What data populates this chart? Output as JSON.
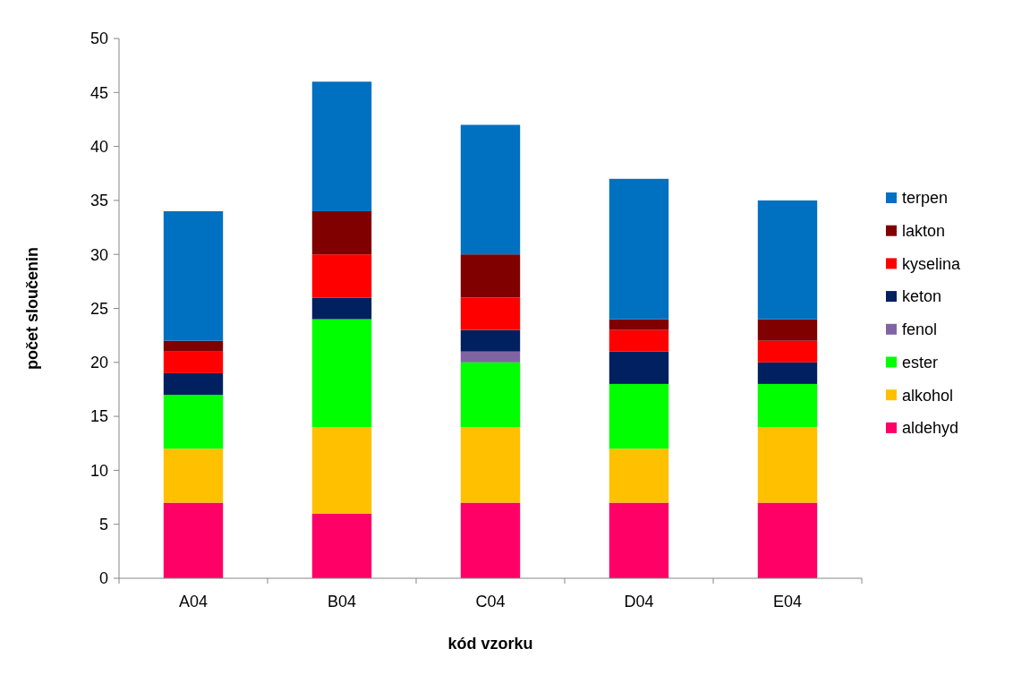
{
  "chart_data": {
    "type": "bar",
    "stacked": true,
    "xlabel": "kód vzorku",
    "ylabel": "počet sloučenin",
    "categories": [
      "A04",
      "B04",
      "C04",
      "D04",
      "E04"
    ],
    "ylim": [
      0,
      50
    ],
    "yticks": [
      0,
      5,
      10,
      15,
      20,
      25,
      30,
      35,
      40,
      45,
      50
    ],
    "grid": false,
    "legend": "right",
    "series": [
      {
        "name": "aldehyd",
        "color": "#ff0066",
        "values": [
          7,
          6,
          7,
          7,
          7
        ]
      },
      {
        "name": "alkohol",
        "color": "#ffc000",
        "values": [
          5,
          8,
          7,
          5,
          7
        ]
      },
      {
        "name": "ester",
        "color": "#00ff00",
        "values": [
          5,
          10,
          6,
          6,
          4
        ]
      },
      {
        "name": "fenol",
        "color": "#8064a2",
        "values": [
          0,
          0,
          1,
          0,
          0
        ]
      },
      {
        "name": "keton",
        "color": "#002060",
        "values": [
          2,
          2,
          2,
          3,
          2
        ]
      },
      {
        "name": "kyselina",
        "color": "#ff0000",
        "values": [
          2,
          4,
          3,
          2,
          2
        ]
      },
      {
        "name": "lakton",
        "color": "#800000",
        "values": [
          1,
          4,
          4,
          1,
          2
        ]
      },
      {
        "name": "terpen",
        "color": "#0070c0",
        "values": [
          12,
          12,
          12,
          13,
          11
        ]
      }
    ]
  }
}
